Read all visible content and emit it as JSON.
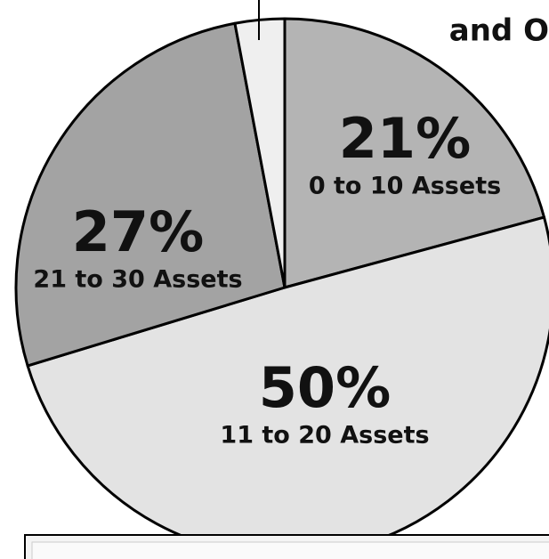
{
  "chart_data": {
    "type": "pie",
    "annotation": "and O",
    "categories": [
      "0 to 10 Assets",
      "11 to 20 Assets",
      "21 to 30 Assets",
      null
    ],
    "values": [
      21,
      50,
      27,
      3
    ],
    "value_labels": [
      "21%",
      "50%",
      "27%",
      null
    ],
    "colors": [
      "#b4b4b4",
      "#e3e3e3",
      "#a3a3a3",
      "#efefef"
    ]
  }
}
